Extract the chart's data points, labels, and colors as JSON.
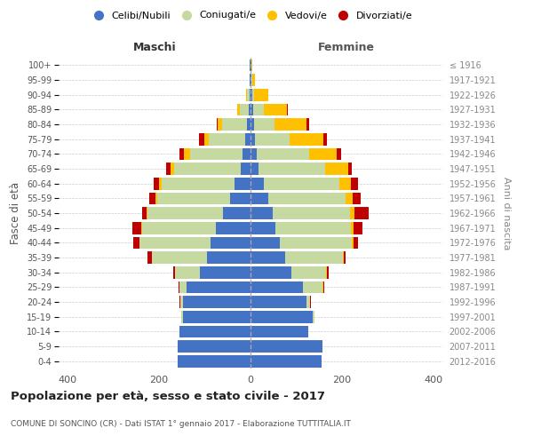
{
  "age_groups": [
    "0-4",
    "5-9",
    "10-14",
    "15-19",
    "20-24",
    "25-29",
    "30-34",
    "35-39",
    "40-44",
    "45-49",
    "50-54",
    "55-59",
    "60-64",
    "65-69",
    "70-74",
    "75-79",
    "80-84",
    "85-89",
    "90-94",
    "95-99",
    "100+"
  ],
  "birth_years": [
    "2012-2016",
    "2007-2011",
    "2002-2006",
    "1997-2001",
    "1992-1996",
    "1987-1991",
    "1982-1986",
    "1977-1981",
    "1972-1976",
    "1967-1971",
    "1962-1966",
    "1957-1961",
    "1952-1956",
    "1947-1951",
    "1942-1946",
    "1937-1941",
    "1932-1936",
    "1927-1931",
    "1922-1926",
    "1917-1921",
    "≤ 1916"
  ],
  "males": {
    "celibi": [
      160,
      160,
      155,
      148,
      148,
      140,
      110,
      95,
      88,
      75,
      60,
      45,
      35,
      22,
      18,
      12,
      7,
      4,
      2,
      1,
      1
    ],
    "coniugati": [
      0,
      0,
      0,
      3,
      5,
      15,
      55,
      120,
      155,
      162,
      165,
      160,
      160,
      145,
      115,
      80,
      55,
      20,
      5,
      1,
      0
    ],
    "vedovi": [
      0,
      0,
      0,
      0,
      0,
      0,
      0,
      0,
      1,
      2,
      3,
      4,
      5,
      8,
      12,
      10,
      10,
      5,
      2,
      0,
      0
    ],
    "divorziati": [
      0,
      0,
      0,
      0,
      2,
      3,
      5,
      10,
      12,
      20,
      10,
      12,
      12,
      10,
      10,
      10,
      2,
      0,
      0,
      0,
      0
    ]
  },
  "females": {
    "nubili": [
      155,
      158,
      127,
      137,
      122,
      115,
      90,
      75,
      65,
      55,
      48,
      38,
      30,
      18,
      14,
      10,
      8,
      5,
      3,
      2,
      1
    ],
    "coniugate": [
      0,
      0,
      0,
      3,
      8,
      42,
      75,
      127,
      157,
      165,
      170,
      170,
      165,
      145,
      115,
      75,
      45,
      25,
      5,
      2,
      0
    ],
    "vedove": [
      0,
      0,
      0,
      0,
      0,
      2,
      2,
      2,
      3,
      5,
      10,
      15,
      25,
      50,
      60,
      75,
      70,
      50,
      30,
      5,
      2
    ],
    "divorziate": [
      0,
      0,
      0,
      0,
      2,
      3,
      5,
      5,
      10,
      20,
      30,
      18,
      15,
      8,
      10,
      8,
      5,
      2,
      0,
      0,
      0
    ]
  },
  "colors": {
    "celibi": "#4472c4",
    "coniugati": "#c5d9a0",
    "vedovi": "#ffc000",
    "divorziati": "#c00000"
  },
  "xlim": 420,
  "title": "Popolazione per età, sesso e stato civile - 2017",
  "subtitle": "COMUNE DI SONCINO (CR) - Dati ISTAT 1° gennaio 2017 - Elaborazione TUTTITALIA.IT",
  "legend_labels": [
    "Celibi/Nubili",
    "Coniugati/e",
    "Vedovi/e",
    "Divorziati/e"
  ],
  "xlabel_left": "Maschi",
  "xlabel_right": "Femmine",
  "ylabel": "Fasce di età",
  "ylabel_right": "Anni di nascita",
  "background_color": "#ffffff",
  "grid_color": "#cccccc"
}
